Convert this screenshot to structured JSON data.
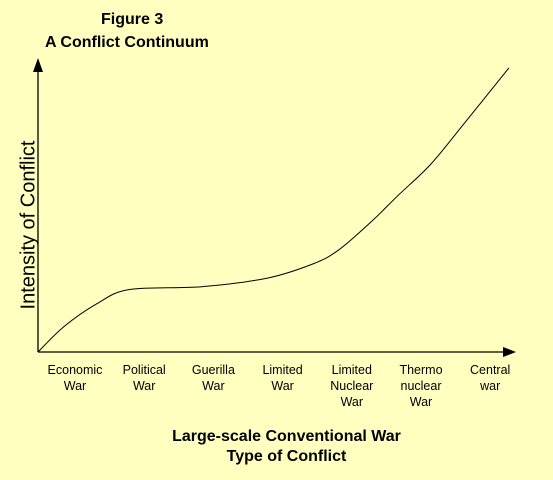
{
  "figure_label": "Figure 3",
  "chart_data": {
    "type": "line",
    "title": "A Conflict Continuum",
    "ylabel": "Intensity of Conflict",
    "xlabel_lines": [
      "Large-scale Conventional War",
      "Type of Conflict"
    ],
    "categories": [
      "Economic\nWar",
      "Political\nWar",
      "Guerilla\nWar",
      "Limited\nWar",
      "Limited\nNuclear\nWar",
      "Thermo\nnuclear\nWar",
      "Central\nwar"
    ],
    "x": [
      0,
      0.4,
      0.9,
      1.4,
      2.5,
      3.5,
      4.2,
      4.6,
      5.1,
      5.5,
      6.0,
      6.5,
      7.2
    ],
    "y": [
      0,
      9,
      17,
      22,
      23,
      26,
      31,
      36,
      46,
      55,
      66,
      80,
      100
    ],
    "xlim": [
      0,
      7.4
    ],
    "ylim": [
      0,
      100
    ],
    "grid": false,
    "axis_arrows": true
  }
}
